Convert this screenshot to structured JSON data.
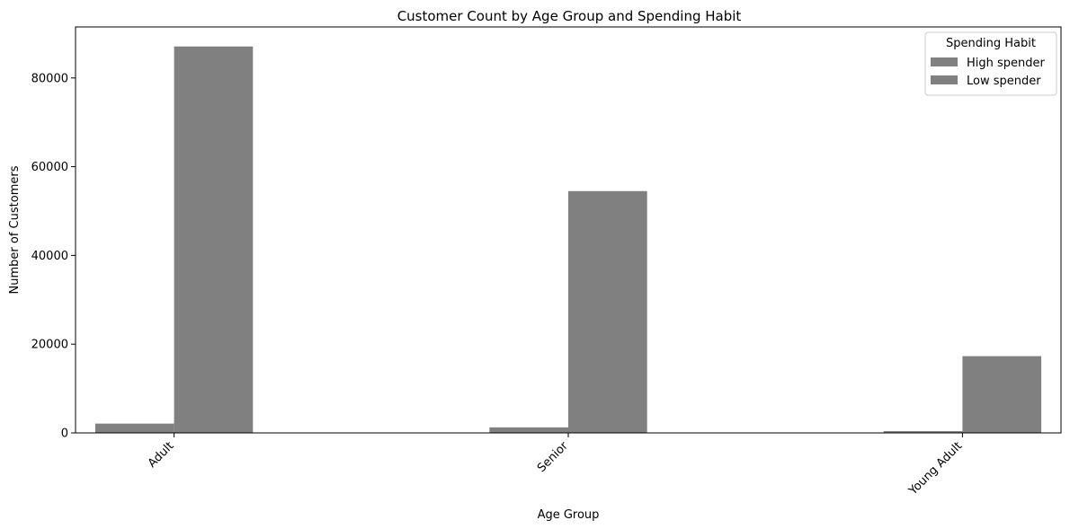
{
  "chart_data": {
    "type": "bar",
    "title": "Customer Count by Age Group and Spending Habit",
    "xlabel": "Age Group",
    "ylabel": "Number of Customers",
    "categories": [
      "Adult",
      "Senior",
      "Young Adult"
    ],
    "series": [
      {
        "name": "High spender",
        "values": [
          2100,
          1250,
          400
        ],
        "color": "#808080"
      },
      {
        "name": "Low spender",
        "values": [
          87100,
          54500,
          17300
        ],
        "color": "#808080"
      }
    ],
    "ylim": [
      0,
      91500
    ],
    "yticks": [
      0,
      20000,
      40000,
      60000,
      80000
    ],
    "ytick_labels": [
      "0",
      "20000",
      "40000",
      "60000",
      "80000"
    ],
    "grid": false,
    "legend": {
      "title": "Spending Habit",
      "placement": "top-right"
    }
  }
}
